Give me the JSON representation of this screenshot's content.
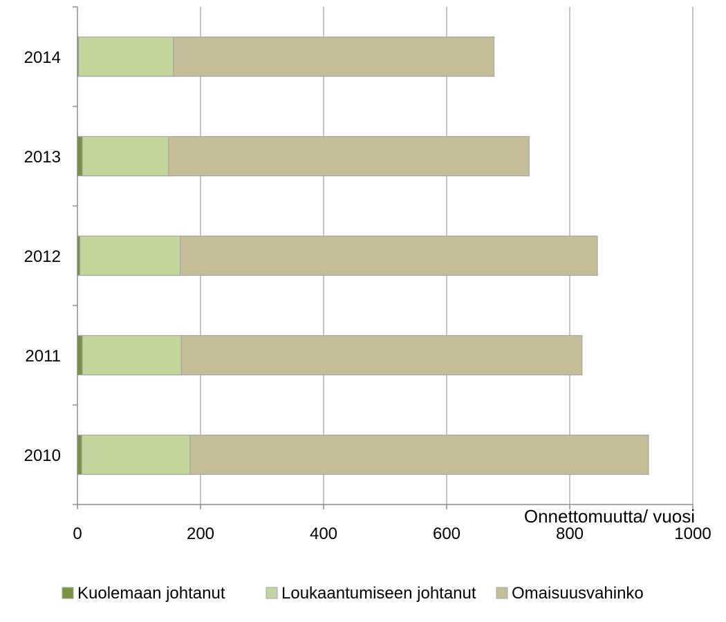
{
  "chart_data": {
    "type": "bar",
    "orientation": "horizontal",
    "stacked": true,
    "title": "",
    "xlabel": "Onnettomuutta/ vuosi",
    "ylabel": "",
    "categories": [
      "2010",
      "2011",
      "2012",
      "2013",
      "2014"
    ],
    "xlim": [
      0,
      1000
    ],
    "x_ticks": [
      0,
      200,
      400,
      600,
      800,
      1000
    ],
    "grid": "vertical",
    "legend_position": "bottom",
    "series": [
      {
        "name": "Kuolemaan johtanut",
        "color": "#77933c",
        "values": [
          7,
          8,
          4,
          8,
          2
        ]
      },
      {
        "name": "Loukaantumiseen johtanut",
        "color": "#c3d69b",
        "values": [
          176,
          161,
          163,
          140,
          154
        ]
      },
      {
        "name": "Omaisuusvahinko",
        "color": "#c4bd97",
        "values": [
          745,
          651,
          678,
          586,
          521
        ]
      }
    ]
  }
}
